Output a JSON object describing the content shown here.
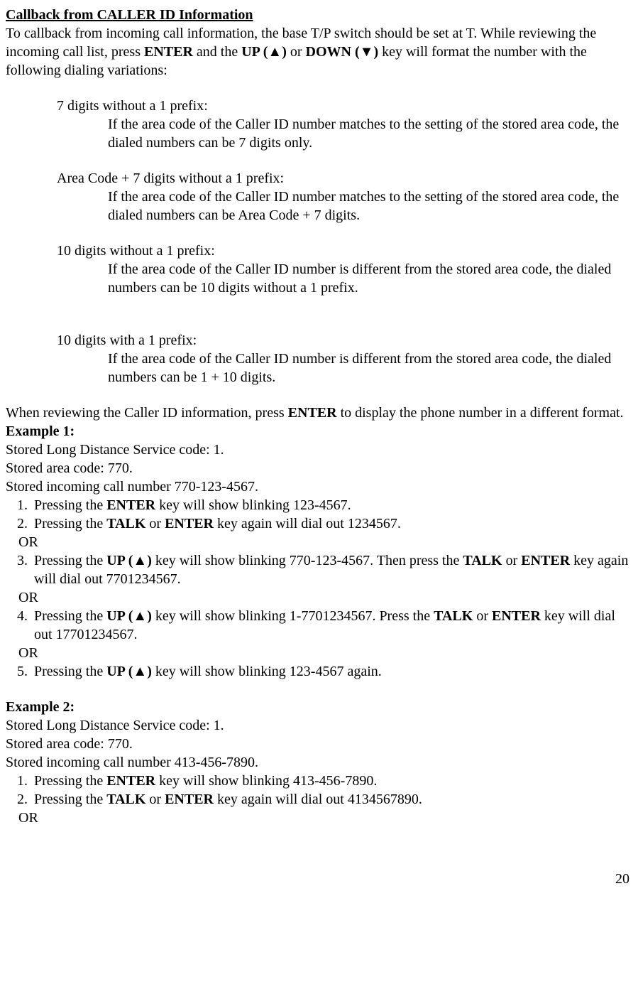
{
  "title": "Callback from CALLER ID Information",
  "intro": {
    "line1_pre": "To callback from incoming call information, the base T/P switch should be set at T. While reviewing the incoming call list, press ",
    "enter": "ENTER",
    "line1_mid1": " and the ",
    "up": "UP (▲)",
    "line1_mid2": " or ",
    "down": "DOWN (▼)",
    "line1_post": " key will format the number with the following dialing variations:"
  },
  "variations": [
    {
      "head": "7 digits without a 1 prefix:",
      "body": "If the area code of the Caller ID number matches to the setting of the stored area code, the dialed numbers can be 7 digits only."
    },
    {
      "head": "Area Code + 7 digits without a 1 prefix:",
      "body": "If the area code of the Caller ID number matches to the setting of the stored area code, the dialed numbers can be Area Code + 7 digits."
    },
    {
      "head": "10 digits without a 1 prefix:",
      "body": "If the area code of the Caller ID number is different from the stored area code, the dialed numbers can be 10 digits without a 1 prefix."
    },
    {
      "head": "10 digits with a 1 prefix:",
      "body": "If the area code of the Caller ID number is different from the stored area code, the dialed numbers can be 1 + 10 digits."
    }
  ],
  "review": {
    "pre": "When reviewing the Caller ID information, press ",
    "enter": "ENTER",
    "post": " to display the phone number in a different format."
  },
  "ex1": {
    "label": "Example 1:",
    "l1": "Stored Long Distance Service code: 1.",
    "l2": "Stored area code: 770.",
    "l3": "Stored incoming call number 770-123-4567.",
    "s1": {
      "pre": "Pressing the ",
      "k1": "ENTER",
      "post": " key will show blinking 123-4567."
    },
    "s2": {
      "pre": "Pressing the ",
      "k1": "TALK",
      "mid": " or ",
      "k2": "ENTER",
      "post": " key again will dial out 1234567."
    },
    "s3": {
      "pre": "Pressing the ",
      "k1": "UP (▲)",
      "mid1": " key will show blinking 770-123-4567. Then press the ",
      "k2": "TALK",
      "mid2": " or ",
      "k3": "ENTER",
      "post": " key again will dial out 7701234567."
    },
    "s4": {
      "pre": "Pressing the ",
      "k1": "UP (▲)",
      "mid1": " key will show blinking 1-7701234567. Press the ",
      "k2": "TALK",
      "mid2": " or ",
      "k3": "ENTER",
      "post": " key will dial out 17701234567."
    },
    "s5": {
      "pre": "Pressing the ",
      "k1": "UP (▲)",
      "post": " key will show blinking 123-4567 again."
    }
  },
  "ex2": {
    "label": "Example 2:",
    "l1": "Stored Long Distance Service code: 1.",
    "l2": "Stored area code: 770.",
    "l3": "Stored incoming call number 413-456-7890.",
    "s1": {
      "pre": "Pressing the ",
      "k1": "ENTER",
      "post": " key will show blinking 413-456-7890."
    },
    "s2": {
      "pre": "Pressing the ",
      "k1": "TALK",
      "mid": " or ",
      "k2": "ENTER",
      "post": " key again will dial out 4134567890."
    }
  },
  "or": "OR",
  "pagenum": "20"
}
